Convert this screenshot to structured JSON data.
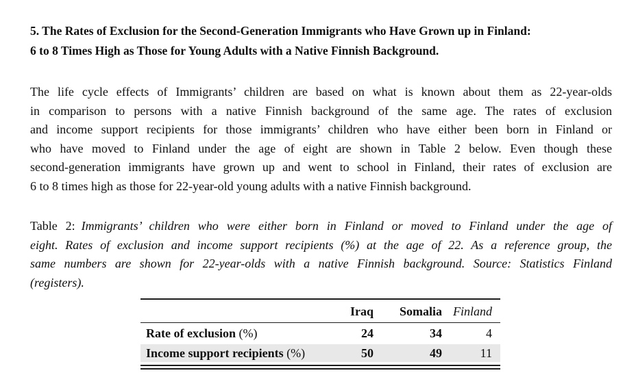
{
  "heading": {
    "lines": [
      "5. The Rates of Exclusion for the Second-Generation Immigrants who Have Grown up in Finland:",
      "6 to 8 Times High as Those for Young Adults with a Native Finnish Background."
    ]
  },
  "paragraph": {
    "lines": [
      "The life cycle effects of Immigrants’ children are based on what is known about them as 22-year-olds",
      "in comparison to persons with a native Finnish background of the same age.  The rates of exclusion",
      "and income support recipients for those immigrants’ children who have either been born in Finland or",
      "who have moved to Finland under the age of eight are shown in Table 2 below.  Even though these",
      "second-generation immigrants have grown up and went to school in Finland, their rates of exclusion are",
      "6 to 8 times high as those for 22-year-old young adults with a native Finnish background."
    ]
  },
  "caption": {
    "label": "Table 2:",
    "lines": [
      "Immigrants’ children who were either born in Finland or moved to Finland under the age of",
      "eight. Rates of exclusion and income support recipients (%) at the age of 22. As a reference group, the",
      "same numbers are shown for 22-year-olds with a native Finnish background. Source: Statistics Finland",
      "(registers)."
    ]
  },
  "table": {
    "headers": [
      "Iraq",
      "Somalia",
      "Finland"
    ],
    "rows": [
      {
        "label": "Rate of exclusion",
        "suffix": "(%)",
        "values": [
          "24",
          "34",
          "4"
        ]
      },
      {
        "label": "Income support recipients",
        "suffix": "(%)",
        "values": [
          "50",
          "49",
          "11"
        ]
      }
    ],
    "colors": {
      "row_shade": "#e8e8e8"
    }
  }
}
